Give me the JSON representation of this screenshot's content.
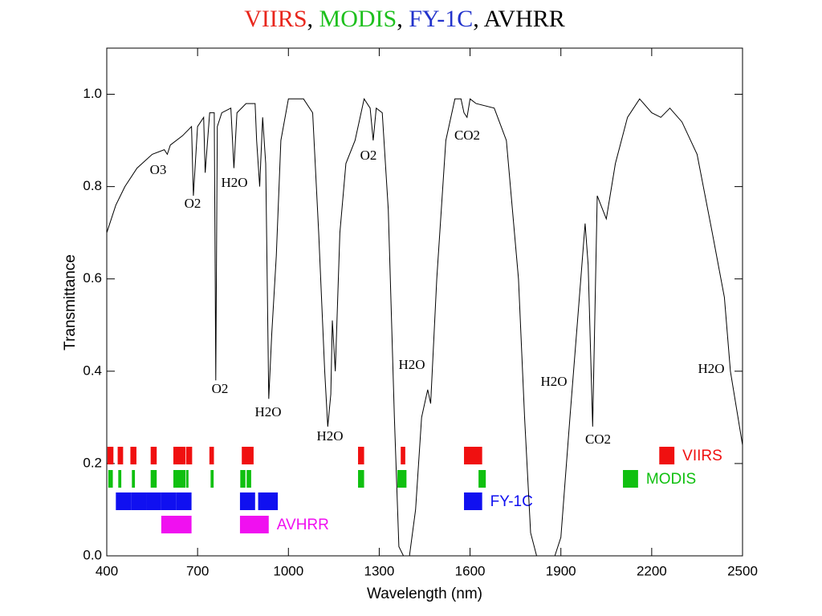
{
  "chart_data": {
    "type": "line",
    "title_parts": [
      {
        "text": "VIIRS",
        "color": "#e8261c"
      },
      {
        "text": ", ",
        "color": "#000000"
      },
      {
        "text": "MODIS",
        "color": "#1ec01e"
      },
      {
        "text": ", ",
        "color": "#000000"
      },
      {
        "text": "FY-1C",
        "color": "#2233cc"
      },
      {
        "text": ", ",
        "color": "#000000"
      },
      {
        "text": "AVHRR",
        "color": "#000000"
      }
    ],
    "xlabel": "Wavelength (nm)",
    "ylabel": "Transmittance",
    "xlim": [
      400,
      2500
    ],
    "ylim": [
      0,
      1.1
    ],
    "xticks": [
      400,
      700,
      1000,
      1300,
      1600,
      1900,
      2200,
      2500
    ],
    "yticks": [
      {
        "value": 0,
        "label": "0.0"
      },
      0.2,
      0.4,
      0.6,
      0.8,
      {
        "value": 1,
        "label": "1.0"
      }
    ],
    "color": "#000000",
    "x": [
      400,
      430,
      460,
      500,
      550,
      590,
      600,
      610,
      650,
      680,
      686,
      700,
      720,
      725,
      740,
      755,
      760,
      765,
      780,
      810,
      820,
      830,
      860,
      890,
      895,
      905,
      915,
      925,
      935,
      945,
      960,
      975,
      1000,
      1050,
      1080,
      1100,
      1120,
      1130,
      1140,
      1145,
      1155,
      1170,
      1190,
      1220,
      1250,
      1270,
      1280,
      1290,
      1310,
      1330,
      1350,
      1365,
      1380,
      1400,
      1420,
      1440,
      1460,
      1470,
      1490,
      1520,
      1550,
      1570,
      1580,
      1590,
      1600,
      1620,
      1680,
      1720,
      1760,
      1780,
      1800,
      1820,
      1850,
      1880,
      1900,
      1930,
      1960,
      1980,
      1990,
      2005,
      2020,
      2050,
      2080,
      2120,
      2160,
      2200,
      2230,
      2260,
      2300,
      2350,
      2400,
      2440,
      2460,
      2500
    ],
    "values": [
      0.7,
      0.76,
      0.8,
      0.84,
      0.87,
      0.88,
      0.87,
      0.89,
      0.91,
      0.93,
      0.78,
      0.93,
      0.95,
      0.83,
      0.96,
      0.96,
      0.38,
      0.93,
      0.96,
      0.97,
      0.84,
      0.96,
      0.98,
      0.98,
      0.9,
      0.8,
      0.95,
      0.85,
      0.34,
      0.48,
      0.65,
      0.9,
      0.99,
      0.99,
      0.96,
      0.7,
      0.4,
      0.28,
      0.35,
      0.51,
      0.4,
      0.7,
      0.85,
      0.9,
      0.99,
      0.97,
      0.9,
      0.97,
      0.96,
      0.75,
      0.3,
      0.02,
      0,
      0,
      0.1,
      0.3,
      0.36,
      0.33,
      0.6,
      0.9,
      0.99,
      0.99,
      0.96,
      0.95,
      0.99,
      0.98,
      0.97,
      0.9,
      0.6,
      0.3,
      0.05,
      0,
      0,
      0,
      0.04,
      0.3,
      0.55,
      0.72,
      0.63,
      0.28,
      0.78,
      0.73,
      0.85,
      0.95,
      0.99,
      0.96,
      0.95,
      0.97,
      0.94,
      0.87,
      0.7,
      0.56,
      0.4,
      0.24
    ],
    "bands": [
      {
        "name": "VIIRS",
        "color": "#f01010",
        "ranges": [
          [
            402,
            422
          ],
          [
            436,
            454
          ],
          [
            478,
            498
          ],
          [
            545,
            565
          ],
          [
            620,
            660
          ],
          [
            662,
            682
          ],
          [
            739,
            754
          ],
          [
            846,
            885
          ],
          [
            1230,
            1250
          ],
          [
            1371,
            1386
          ],
          [
            1580,
            1640
          ],
          [
            2225,
            2275
          ]
        ]
      },
      {
        "name": "MODIS",
        "color": "#10c010",
        "ranges": [
          [
            405,
            420
          ],
          [
            438,
            448
          ],
          [
            483,
            493
          ],
          [
            545,
            565
          ],
          [
            620,
            660
          ],
          [
            662,
            670
          ],
          [
            743,
            753
          ],
          [
            841,
            858
          ],
          [
            862,
            877
          ],
          [
            1230,
            1250
          ],
          [
            1360,
            1390
          ],
          [
            1628,
            1652
          ],
          [
            2105,
            2155
          ]
        ]
      },
      {
        "name": "FY-1C",
        "color": "#1010f0",
        "ranges": [
          [
            430,
            480
          ],
          [
            480,
            530
          ],
          [
            530,
            580
          ],
          [
            580,
            630
          ],
          [
            630,
            680
          ],
          [
            840,
            890
          ],
          [
            900,
            965
          ],
          [
            1580,
            1640
          ]
        ]
      },
      {
        "name": "AVHRR",
        "color": "#f010f0",
        "ranges": [
          [
            580,
            680
          ],
          [
            840,
            935
          ]
        ]
      }
    ],
    "annotations": [
      "O3",
      "O2",
      "H2O",
      "O2",
      "H2O",
      "H2O",
      "O2",
      "CO2",
      "H2O",
      "H2O",
      "CO2",
      "H2O"
    ]
  }
}
